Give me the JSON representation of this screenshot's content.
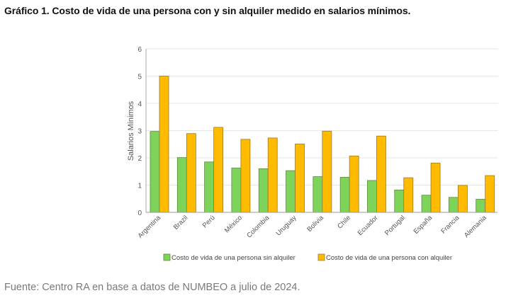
{
  "title": "Gráfico 1. Costo de vida de una persona con y sin alquiler medido en salarios mínimos.",
  "source": "Fuente: Centro RA en base a datos de NUMBEO a julio de 2024.",
  "chart_data": {
    "type": "bar",
    "title": "Gráfico 1. Costo de vida de una persona con y sin alquiler medido en salarios mínimos.",
    "xlabel": "",
    "ylabel": "Salarios Mínimos",
    "ylim": [
      0,
      6
    ],
    "yticks": [
      "0",
      "1",
      "2",
      "3",
      "4",
      "5",
      "6"
    ],
    "grid": true,
    "legend_position": "bottom",
    "categories": [
      "Argentina",
      "Brazil",
      "Perú",
      "México",
      "Colombia",
      "Uruguay",
      "Bolivia",
      "Chile",
      "Ecuador",
      "Portugal",
      "España",
      "Francia",
      "Alemania"
    ],
    "series": [
      {
        "name": "Costo de vida de una persona sin alquiler",
        "color": "#7ed35b",
        "values": [
          2.97,
          2.01,
          1.85,
          1.63,
          1.6,
          1.53,
          1.31,
          1.29,
          1.17,
          0.82,
          0.63,
          0.55,
          0.48
        ]
      },
      {
        "name": "Costo de vida de una persona con alquiler",
        "color": "#ffbb00",
        "values": [
          5.0,
          2.89,
          3.12,
          2.68,
          2.73,
          2.51,
          2.98,
          2.07,
          2.8,
          1.27,
          1.81,
          0.99,
          1.35
        ]
      }
    ]
  }
}
